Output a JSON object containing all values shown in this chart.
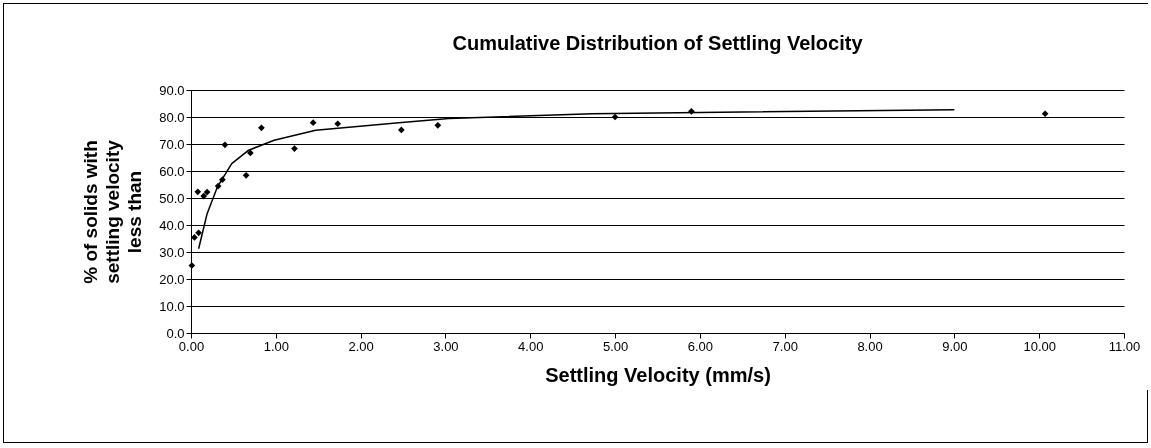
{
  "chart_data": {
    "type": "scatter",
    "title": "Cumulative Distribution of Settling Velocity",
    "xlabel": "Settling Velocity (mm/s)",
    "ylabel": "% of solids with\nsettling velocity\nless than",
    "series": [
      {
        "color": "#000000",
        "marker": "diamond",
        "x": [
          0.01,
          0.04,
          0.09,
          0.08,
          0.15,
          0.19,
          0.32,
          0.37,
          0.4,
          0.65,
          0.7,
          0.83,
          1.22,
          1.44,
          1.73,
          2.48,
          2.91,
          5.0,
          5.9,
          10.07
        ],
        "values": [
          25,
          35.4,
          37.1,
          52.3,
          50.7,
          52.2,
          54.4,
          56.8,
          69.7,
          58.4,
          66.7,
          76,
          68.3,
          77.9,
          77.5,
          75.2,
          76.9,
          80,
          82.1,
          81.2
        ]
      },
      {
        "type": "line",
        "color": "#000000",
        "line_style": "solid",
        "x": [
          0.09,
          0.19,
          0.31,
          0.48,
          0.68,
          0.98,
          1.47,
          2.45,
          3.04,
          4.73,
          9.0
        ],
        "values": [
          31.2,
          44.2,
          54,
          62.7,
          67.7,
          71.4,
          75.1,
          77.9,
          79.4,
          81.2,
          82.7
        ]
      }
    ],
    "xlim": [
      0,
      11
    ],
    "xticks": [
      {
        "value": 0,
        "label": "0.00"
      },
      {
        "value": 1,
        "label": "1.00"
      },
      {
        "value": 2,
        "label": "2.00"
      },
      {
        "value": 3,
        "label": "3.00"
      },
      {
        "value": 4,
        "label": "4.00"
      },
      {
        "value": 5,
        "label": "5.00"
      },
      {
        "value": 6,
        "label": "6.00"
      },
      {
        "value": 7,
        "label": "7.00"
      },
      {
        "value": 8,
        "label": "8.00"
      },
      {
        "value": 9,
        "label": "9.00"
      },
      {
        "value": 10,
        "label": "10.00"
      },
      {
        "value": 11,
        "label": "11.00"
      }
    ],
    "ylim": [
      0,
      90
    ],
    "yticks": [
      {
        "value": 0,
        "label": "0.0"
      },
      {
        "value": 10,
        "label": "10.0"
      },
      {
        "value": 20,
        "label": "20.0"
      },
      {
        "value": 30,
        "label": "30.0"
      },
      {
        "value": 40,
        "label": "40.0"
      },
      {
        "value": 50,
        "label": "50.0"
      },
      {
        "value": 60,
        "label": "60.0"
      },
      {
        "value": 70,
        "label": "70.0"
      },
      {
        "value": 80,
        "label": "80.0"
      },
      {
        "value": 90,
        "label": "90.0"
      }
    ],
    "grid": "y"
  }
}
